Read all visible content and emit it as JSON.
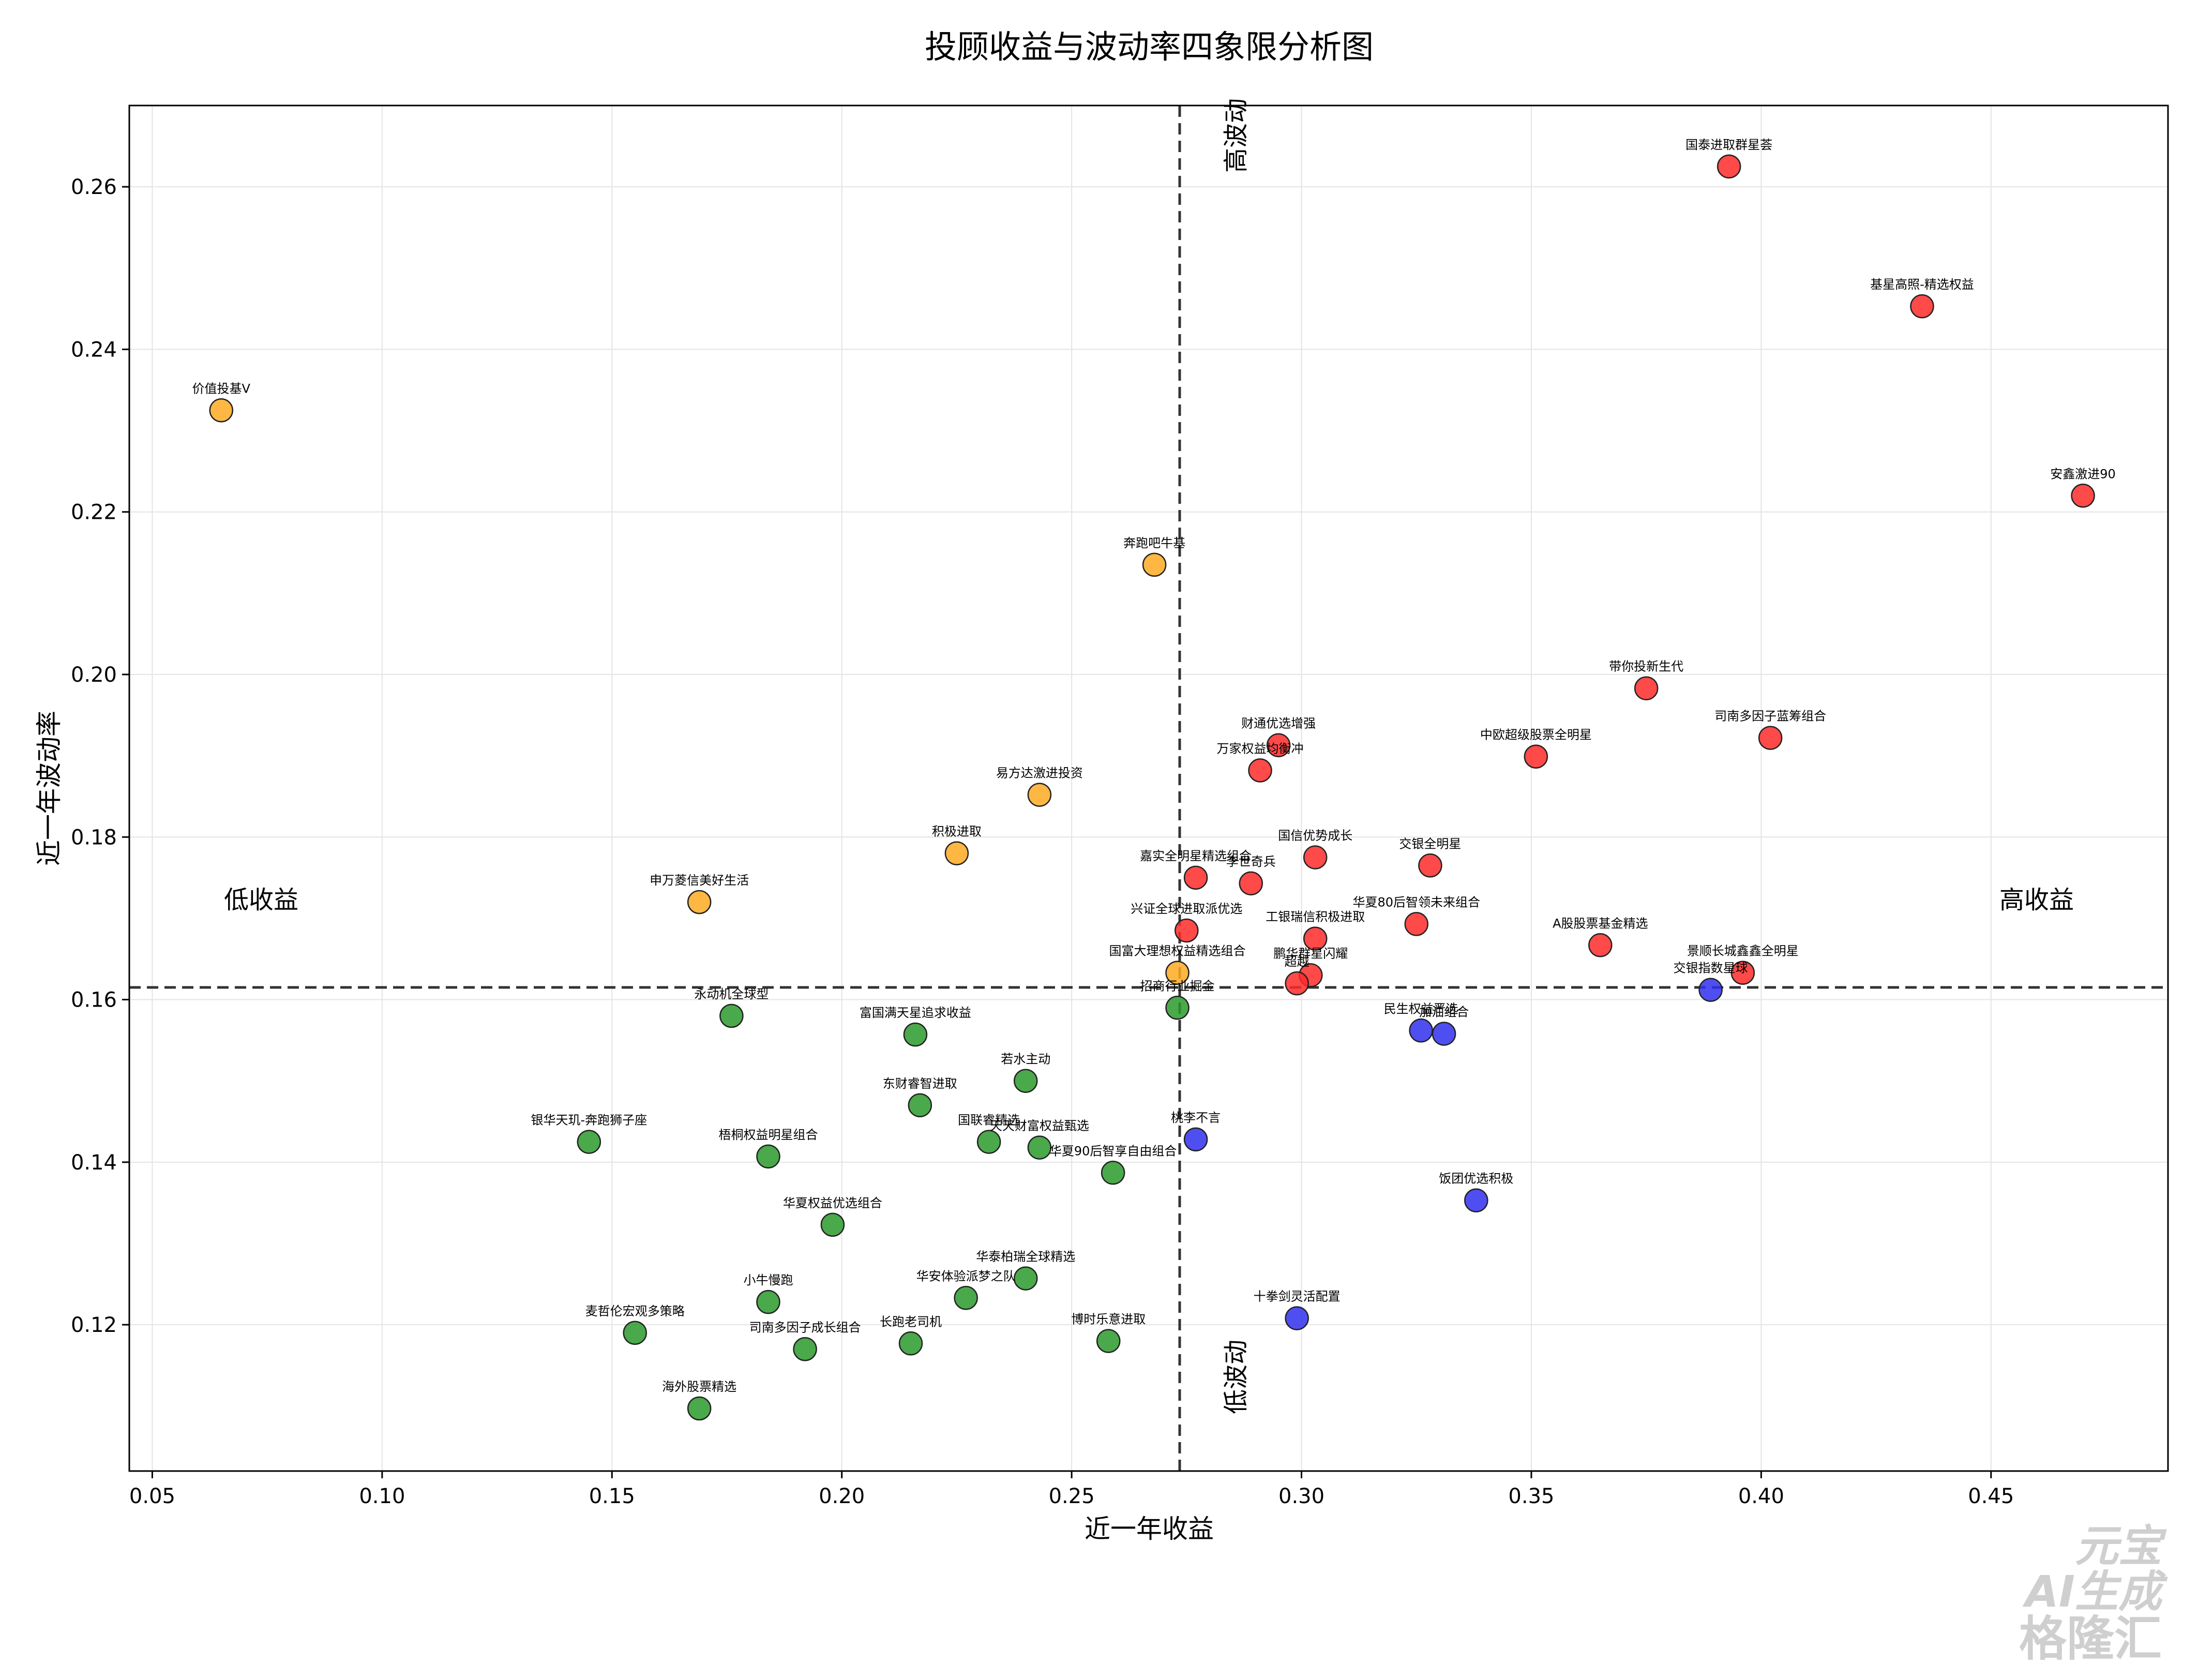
{
  "chart_data": {
    "type": "scatter",
    "title": "投顾收益与波动率四象限分析图",
    "xlabel": "近一年收益",
    "ylabel": "近一年波动率",
    "xlim": [
      0.045,
      0.4885
    ],
    "ylim": [
      0.102,
      0.27
    ],
    "xticks": [
      "0.05",
      "0.10",
      "0.15",
      "0.20",
      "0.25",
      "0.30",
      "0.35",
      "0.40",
      "0.45"
    ],
    "yticks": [
      "0.12",
      "0.14",
      "0.16",
      "0.18",
      "0.20",
      "0.22",
      "0.24",
      "0.26"
    ],
    "grid": true,
    "ref_lines": {
      "x": 0.2735,
      "y": 0.1615
    },
    "quadrant_labels": {
      "high_vol": "高波动",
      "low_vol": "低波动",
      "low_return": "低收益",
      "high_return": "高收益"
    },
    "colors": {
      "red": "#ff2a2a",
      "orange": "#ffaa22",
      "green": "#2a9a2a",
      "blue": "#3030ee"
    },
    "points": [
      {
        "label": "国泰进取群星荟",
        "x": 0.393,
        "y": 0.2625,
        "color": "red"
      },
      {
        "label": "基星高照-精选权益",
        "x": 0.435,
        "y": 0.2453,
        "color": "red"
      },
      {
        "label": "安鑫激进90",
        "x": 0.47,
        "y": 0.222,
        "color": "red"
      },
      {
        "label": "带你投新生代",
        "x": 0.375,
        "y": 0.1983,
        "color": "red"
      },
      {
        "label": "司南多因子蓝筹组合",
        "x": 0.402,
        "y": 0.1922,
        "color": "red"
      },
      {
        "label": "中欧超级股票全明星",
        "x": 0.351,
        "y": 0.1899,
        "color": "red"
      },
      {
        "label": "财通优选增强",
        "x": 0.295,
        "y": 0.1913,
        "color": "red"
      },
      {
        "label": "万家权益均衡冲",
        "x": 0.291,
        "y": 0.1882,
        "color": "red"
      },
      {
        "label": "国信优势成长",
        "x": 0.303,
        "y": 0.1775,
        "color": "red"
      },
      {
        "label": "交银全明星",
        "x": 0.328,
        "y": 0.1765,
        "color": "red"
      },
      {
        "label": "嘉实全明星精选组合",
        "x": 0.277,
        "y": 0.175,
        "color": "red"
      },
      {
        "label": "李世奇兵",
        "x": 0.289,
        "y": 0.1743,
        "color": "red"
      },
      {
        "label": "华夏80后智领未来组合",
        "x": 0.325,
        "y": 0.1693,
        "color": "red"
      },
      {
        "label": "兴证全球进取派优选",
        "x": 0.275,
        "y": 0.1685,
        "color": "red"
      },
      {
        "label": "工银瑞信积极进取",
        "x": 0.303,
        "y": 0.1675,
        "color": "red"
      },
      {
        "label": "A股股票基金精选",
        "x": 0.365,
        "y": 0.1667,
        "color": "red"
      },
      {
        "label": "景顺长城鑫鑫全明星",
        "x": 0.396,
        "y": 0.1633,
        "color": "red"
      },
      {
        "label": "鹏华群星闪耀",
        "x": 0.302,
        "y": 0.163,
        "color": "red"
      },
      {
        "label": "超越",
        "x": 0.299,
        "y": 0.162,
        "color": "red"
      },
      {
        "label": "价值投基V",
        "x": 0.065,
        "y": 0.2325,
        "color": "orange"
      },
      {
        "label": "奔跑吧牛基",
        "x": 0.268,
        "y": 0.2135,
        "color": "orange"
      },
      {
        "label": "易方达激进投资",
        "x": 0.243,
        "y": 0.1852,
        "color": "orange"
      },
      {
        "label": "积极进取",
        "x": 0.225,
        "y": 0.178,
        "color": "orange"
      },
      {
        "label": "申万菱信美好生活",
        "x": 0.169,
        "y": 0.172,
        "color": "orange"
      },
      {
        "label": "国富大理想权益精选组合",
        "x": 0.273,
        "y": 0.1633,
        "color": "orange"
      },
      {
        "label": "交银指数星球",
        "x": 0.389,
        "y": 0.1612,
        "color": "blue"
      },
      {
        "label": "民生权益严选",
        "x": 0.326,
        "y": 0.1562,
        "color": "blue"
      },
      {
        "label": "加油组合",
        "x": 0.331,
        "y": 0.1558,
        "color": "blue"
      },
      {
        "label": "桃李不言",
        "x": 0.277,
        "y": 0.1428,
        "color": "blue"
      },
      {
        "label": "饭团优选积极",
        "x": 0.338,
        "y": 0.1353,
        "color": "blue"
      },
      {
        "label": "十拳剑灵活配置",
        "x": 0.299,
        "y": 0.1208,
        "color": "blue"
      },
      {
        "label": "永动机全球型",
        "x": 0.176,
        "y": 0.158,
        "color": "green"
      },
      {
        "label": "招商行业掘金",
        "x": 0.273,
        "y": 0.159,
        "color": "green"
      },
      {
        "label": "富国满天星追求收益",
        "x": 0.216,
        "y": 0.1557,
        "color": "green"
      },
      {
        "label": "若水主动",
        "x": 0.24,
        "y": 0.15,
        "color": "green"
      },
      {
        "label": "东财睿智进取",
        "x": 0.217,
        "y": 0.147,
        "color": "green"
      },
      {
        "label": "银华天玑-奔跑狮子座",
        "x": 0.145,
        "y": 0.1425,
        "color": "green"
      },
      {
        "label": "梧桐权益明星组合",
        "x": 0.184,
        "y": 0.1407,
        "color": "green"
      },
      {
        "label": "国联睿精选",
        "x": 0.232,
        "y": 0.1425,
        "color": "green"
      },
      {
        "label": "天天财富权益甄选",
        "x": 0.243,
        "y": 0.1418,
        "color": "green"
      },
      {
        "label": "华夏90后智享自由组合",
        "x": 0.259,
        "y": 0.1387,
        "color": "green"
      },
      {
        "label": "华夏权益优选组合",
        "x": 0.198,
        "y": 0.1323,
        "color": "green"
      },
      {
        "label": "华泰柏瑞全球精选",
        "x": 0.24,
        "y": 0.1257,
        "color": "green"
      },
      {
        "label": "华安体验派梦之队",
        "x": 0.227,
        "y": 0.1233,
        "color": "green"
      },
      {
        "label": "小牛慢跑",
        "x": 0.184,
        "y": 0.1228,
        "color": "green"
      },
      {
        "label": "麦哲伦宏观多策略",
        "x": 0.155,
        "y": 0.119,
        "color": "green"
      },
      {
        "label": "司南多因子成长组合",
        "x": 0.192,
        "y": 0.117,
        "color": "green"
      },
      {
        "label": "长跑老司机",
        "x": 0.215,
        "y": 0.1177,
        "color": "green"
      },
      {
        "label": "博时乐意进取",
        "x": 0.258,
        "y": 0.118,
        "color": "green"
      },
      {
        "label": "海外股票精选",
        "x": 0.169,
        "y": 0.1097,
        "color": "green"
      }
    ]
  },
  "watermark": {
    "line1": "元宝",
    "line2": "AI生成",
    "line3": "格隆汇"
  }
}
